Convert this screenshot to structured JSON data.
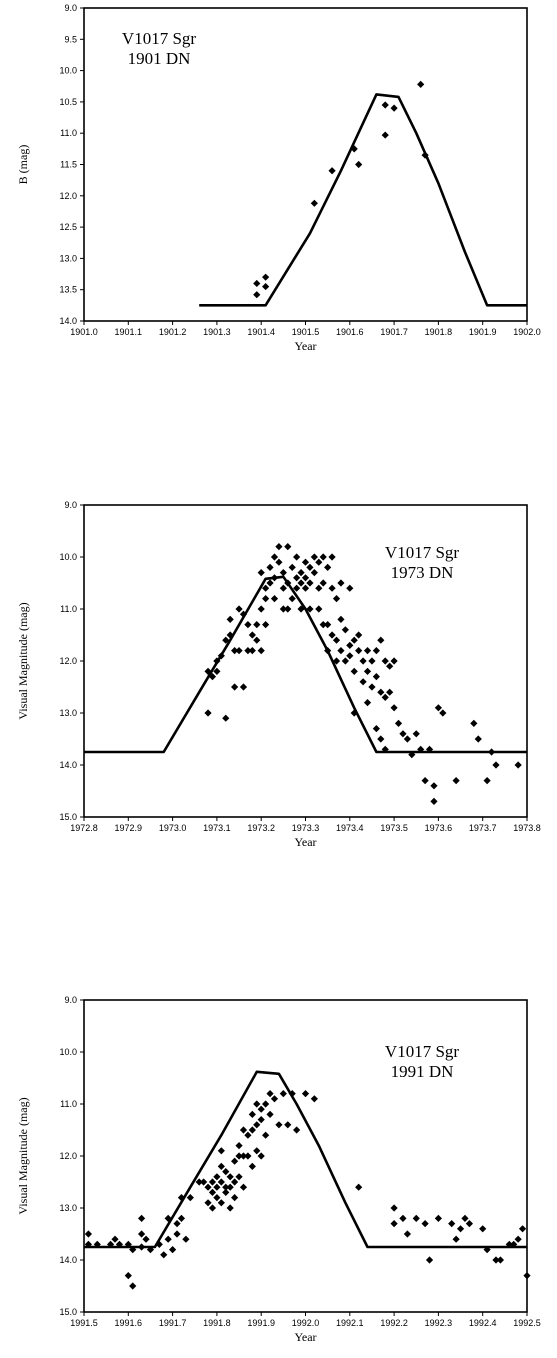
{
  "chart_data": [
    {
      "type": "scatter",
      "annotation": [
        "V1017 Sgr",
        "1901 DN"
      ],
      "xlabel": "Year",
      "ylabel": "B (mag)",
      "xlim": [
        1901.0,
        1902.0
      ],
      "ylim": [
        9.0,
        14.0
      ],
      "y_inverted": true,
      "xticks": [
        "1901.0",
        "1901.1",
        "1901.2",
        "1901.3",
        "1901.4",
        "1901.5",
        "1901.6",
        "1901.7",
        "1901.8",
        "1901.9",
        "1902.0"
      ],
      "yticks": [
        "9.0",
        "9.5",
        "10.0",
        "10.5",
        "11.0",
        "11.5",
        "12.0",
        "12.5",
        "13.0",
        "13.5",
        "14.0"
      ],
      "model": [
        [
          1901.26,
          13.75
        ],
        [
          1901.41,
          13.75
        ],
        [
          1901.51,
          12.6
        ],
        [
          1901.58,
          11.6
        ],
        [
          1901.66,
          10.38
        ],
        [
          1901.71,
          10.42
        ],
        [
          1901.75,
          11.0
        ],
        [
          1901.8,
          11.8
        ],
        [
          1901.86,
          12.9
        ],
        [
          1901.91,
          13.75
        ],
        [
          1902.0,
          13.75
        ]
      ],
      "points": [
        [
          1901.39,
          13.4
        ],
        [
          1901.39,
          13.58
        ],
        [
          1901.41,
          13.3
        ],
        [
          1901.41,
          13.45
        ],
        [
          1901.52,
          12.12
        ],
        [
          1901.56,
          11.6
        ],
        [
          1901.61,
          11.25
        ],
        [
          1901.62,
          11.5
        ],
        [
          1901.68,
          11.03
        ],
        [
          1901.68,
          10.55
        ],
        [
          1901.7,
          10.6
        ],
        [
          1901.76,
          10.22
        ],
        [
          1901.77,
          11.35
        ]
      ]
    },
    {
      "type": "scatter",
      "annotation": [
        "V1017 Sgr",
        "1973 DN"
      ],
      "xlabel": "Year",
      "ylabel": "Visual Magnitude (mag)",
      "xlim": [
        1972.8,
        1973.8
      ],
      "ylim": [
        9.0,
        15.0
      ],
      "y_inverted": true,
      "xticks": [
        "1972.8",
        "1972.9",
        "1973.0",
        "1973.1",
        "1973.2",
        "1973.3",
        "1973.4",
        "1973.5",
        "1973.6",
        "1973.7",
        "1973.8"
      ],
      "yticks": [
        "9.0",
        "10.0",
        "11.0",
        "12.0",
        "13.0",
        "14.0",
        "15.0"
      ],
      "model": [
        [
          1972.8,
          13.75
        ],
        [
          1972.98,
          13.75
        ],
        [
          1973.06,
          12.6
        ],
        [
          1973.13,
          11.6
        ],
        [
          1973.21,
          10.42
        ],
        [
          1973.25,
          10.38
        ],
        [
          1973.3,
          11.0
        ],
        [
          1973.35,
          11.8
        ],
        [
          1973.41,
          12.9
        ],
        [
          1973.46,
          13.75
        ],
        [
          1973.8,
          13.75
        ]
      ],
      "points": [
        [
          1973.08,
          13.0
        ],
        [
          1973.12,
          13.1
        ],
        [
          1973.08,
          12.2
        ],
        [
          1973.09,
          12.3
        ],
        [
          1973.1,
          12.0
        ],
        [
          1973.1,
          12.2
        ],
        [
          1973.11,
          11.9
        ],
        [
          1973.12,
          11.6
        ],
        [
          1973.13,
          11.5
        ],
        [
          1973.13,
          11.2
        ],
        [
          1973.14,
          11.8
        ],
        [
          1973.14,
          12.5
        ],
        [
          1973.15,
          11.0
        ],
        [
          1973.15,
          11.8
        ],
        [
          1973.16,
          11.1
        ],
        [
          1973.16,
          12.5
        ],
        [
          1973.17,
          11.3
        ],
        [
          1973.17,
          11.8
        ],
        [
          1973.18,
          11.5
        ],
        [
          1973.18,
          11.8
        ],
        [
          1973.19,
          11.3
        ],
        [
          1973.19,
          11.6
        ],
        [
          1973.2,
          10.3
        ],
        [
          1973.2,
          11.0
        ],
        [
          1973.2,
          11.8
        ],
        [
          1973.21,
          10.6
        ],
        [
          1973.21,
          10.8
        ],
        [
          1973.21,
          11.3
        ],
        [
          1973.22,
          10.2
        ],
        [
          1973.22,
          10.5
        ],
        [
          1973.23,
          10.0
        ],
        [
          1973.23,
          10.4
        ],
        [
          1973.23,
          10.8
        ],
        [
          1973.24,
          9.8
        ],
        [
          1973.24,
          10.1
        ],
        [
          1973.25,
          10.3
        ],
        [
          1973.25,
          10.6
        ],
        [
          1973.25,
          11.0
        ],
        [
          1973.26,
          9.8
        ],
        [
          1973.26,
          10.5
        ],
        [
          1973.26,
          11.0
        ],
        [
          1973.27,
          10.2
        ],
        [
          1973.27,
          10.8
        ],
        [
          1973.28,
          10.0
        ],
        [
          1973.28,
          10.4
        ],
        [
          1973.28,
          10.6
        ],
        [
          1973.29,
          10.3
        ],
        [
          1973.29,
          10.5
        ],
        [
          1973.29,
          11.0
        ],
        [
          1973.3,
          10.1
        ],
        [
          1973.3,
          10.4
        ],
        [
          1973.3,
          10.6
        ],
        [
          1973.31,
          10.2
        ],
        [
          1973.31,
          10.5
        ],
        [
          1973.31,
          11.0
        ],
        [
          1973.32,
          10.0
        ],
        [
          1973.32,
          10.3
        ],
        [
          1973.33,
          10.1
        ],
        [
          1973.33,
          10.6
        ],
        [
          1973.33,
          11.0
        ],
        [
          1973.34,
          10.0
        ],
        [
          1973.34,
          10.5
        ],
        [
          1973.34,
          11.3
        ],
        [
          1973.35,
          10.2
        ],
        [
          1973.35,
          11.3
        ],
        [
          1973.35,
          11.8
        ],
        [
          1973.36,
          10.0
        ],
        [
          1973.36,
          10.6
        ],
        [
          1973.36,
          11.5
        ],
        [
          1973.37,
          10.8
        ],
        [
          1973.37,
          11.6
        ],
        [
          1973.37,
          12.0
        ],
        [
          1973.38,
          10.5
        ],
        [
          1973.38,
          11.2
        ],
        [
          1973.38,
          11.8
        ],
        [
          1973.39,
          11.4
        ],
        [
          1973.39,
          12.0
        ],
        [
          1973.4,
          10.6
        ],
        [
          1973.4,
          11.7
        ],
        [
          1973.4,
          11.9
        ],
        [
          1973.41,
          11.6
        ],
        [
          1973.41,
          12.2
        ],
        [
          1973.41,
          13.0
        ],
        [
          1973.42,
          11.5
        ],
        [
          1973.42,
          11.8
        ],
        [
          1973.43,
          12.0
        ],
        [
          1973.43,
          12.4
        ],
        [
          1973.44,
          11.8
        ],
        [
          1973.44,
          12.2
        ],
        [
          1973.44,
          12.8
        ],
        [
          1973.45,
          12.0
        ],
        [
          1973.45,
          12.5
        ],
        [
          1973.46,
          11.8
        ],
        [
          1973.46,
          12.3
        ],
        [
          1973.46,
          13.3
        ],
        [
          1973.47,
          11.6
        ],
        [
          1973.47,
          12.6
        ],
        [
          1973.47,
          13.5
        ],
        [
          1973.48,
          12.0
        ],
        [
          1973.48,
          12.7
        ],
        [
          1973.48,
          13.7
        ],
        [
          1973.49,
          12.1
        ],
        [
          1973.49,
          12.6
        ],
        [
          1973.5,
          12.0
        ],
        [
          1973.5,
          12.9
        ],
        [
          1973.51,
          13.2
        ],
        [
          1973.52,
          13.4
        ],
        [
          1973.53,
          13.5
        ],
        [
          1973.54,
          13.8
        ],
        [
          1973.55,
          13.4
        ],
        [
          1973.56,
          13.7
        ],
        [
          1973.58,
          13.7
        ],
        [
          1973.57,
          14.3
        ],
        [
          1973.59,
          14.4
        ],
        [
          1973.59,
          14.7
        ],
        [
          1973.6,
          12.9
        ],
        [
          1973.61,
          13.0
        ],
        [
          1973.64,
          14.3
        ],
        [
          1973.68,
          13.2
        ],
        [
          1973.69,
          13.5
        ],
        [
          1973.71,
          14.3
        ],
        [
          1973.72,
          13.75
        ],
        [
          1973.73,
          14.0
        ],
        [
          1973.78,
          14.0
        ]
      ]
    },
    {
      "type": "scatter",
      "annotation": [
        "V1017 Sgr",
        "1991 DN"
      ],
      "xlabel": "Year",
      "ylabel": "Visual Magnitude (mag)",
      "xlim": [
        1991.5,
        1992.5
      ],
      "ylim": [
        9.0,
        15.0
      ],
      "y_inverted": true,
      "xticks": [
        "1991.5",
        "1991.6",
        "1991.7",
        "1991.8",
        "1991.9",
        "1992.0",
        "1992.1",
        "1992.2",
        "1992.3",
        "1992.4",
        "1992.5"
      ],
      "yticks": [
        "9.0",
        "10.0",
        "11.0",
        "12.0",
        "13.0",
        "14.0",
        "15.0"
      ],
      "model": [
        [
          1991.5,
          13.75
        ],
        [
          1991.66,
          13.75
        ],
        [
          1991.74,
          12.6
        ],
        [
          1991.81,
          11.6
        ],
        [
          1991.89,
          10.38
        ],
        [
          1991.94,
          10.42
        ],
        [
          1991.98,
          11.0
        ],
        [
          1992.03,
          11.8
        ],
        [
          1992.09,
          12.9
        ],
        [
          1992.14,
          13.75
        ],
        [
          1992.5,
          13.75
        ]
      ],
      "points": [
        [
          1991.51,
          13.5
        ],
        [
          1991.51,
          13.7
        ],
        [
          1991.53,
          13.7
        ],
        [
          1991.56,
          13.7
        ],
        [
          1991.57,
          13.6
        ],
        [
          1991.58,
          13.7
        ],
        [
          1991.6,
          13.7
        ],
        [
          1991.6,
          14.3
        ],
        [
          1991.61,
          14.5
        ],
        [
          1991.61,
          13.8
        ],
        [
          1991.63,
          13.2
        ],
        [
          1991.63,
          13.5
        ],
        [
          1991.63,
          13.75
        ],
        [
          1991.64,
          13.6
        ],
        [
          1991.65,
          13.8
        ],
        [
          1991.67,
          13.7
        ],
        [
          1991.68,
          13.9
        ],
        [
          1991.69,
          13.2
        ],
        [
          1991.69,
          13.6
        ],
        [
          1991.7,
          13.8
        ],
        [
          1991.71,
          13.3
        ],
        [
          1991.71,
          13.5
        ],
        [
          1991.72,
          12.8
        ],
        [
          1991.72,
          13.2
        ],
        [
          1991.73,
          13.6
        ],
        [
          1991.74,
          12.8
        ],
        [
          1991.76,
          12.5
        ],
        [
          1991.77,
          12.5
        ],
        [
          1991.78,
          12.6
        ],
        [
          1991.78,
          12.9
        ],
        [
          1991.79,
          12.5
        ],
        [
          1991.79,
          12.7
        ],
        [
          1991.79,
          13.0
        ],
        [
          1991.8,
          12.4
        ],
        [
          1991.8,
          12.6
        ],
        [
          1991.8,
          12.8
        ],
        [
          1991.81,
          11.9
        ],
        [
          1991.81,
          12.2
        ],
        [
          1991.81,
          12.5
        ],
        [
          1991.81,
          12.9
        ],
        [
          1991.82,
          12.3
        ],
        [
          1991.82,
          12.6
        ],
        [
          1991.82,
          12.7
        ],
        [
          1991.83,
          12.4
        ],
        [
          1991.83,
          12.6
        ],
        [
          1991.83,
          13.0
        ],
        [
          1991.84,
          12.1
        ],
        [
          1991.84,
          12.5
        ],
        [
          1991.84,
          12.8
        ],
        [
          1991.85,
          11.8
        ],
        [
          1991.85,
          12.0
        ],
        [
          1991.85,
          12.4
        ],
        [
          1991.86,
          11.5
        ],
        [
          1991.86,
          12.0
        ],
        [
          1991.86,
          12.6
        ],
        [
          1991.87,
          11.6
        ],
        [
          1991.87,
          12.0
        ],
        [
          1991.88,
          11.2
        ],
        [
          1991.88,
          11.5
        ],
        [
          1991.88,
          12.2
        ],
        [
          1991.89,
          11.0
        ],
        [
          1991.89,
          11.4
        ],
        [
          1991.89,
          11.9
        ],
        [
          1991.9,
          11.1
        ],
        [
          1991.9,
          11.3
        ],
        [
          1991.9,
          12.0
        ],
        [
          1991.91,
          11.0
        ],
        [
          1991.91,
          11.6
        ],
        [
          1991.92,
          10.8
        ],
        [
          1991.92,
          11.2
        ],
        [
          1991.93,
          10.9
        ],
        [
          1991.94,
          11.4
        ],
        [
          1991.95,
          10.8
        ],
        [
          1991.96,
          11.4
        ],
        [
          1991.97,
          10.8
        ],
        [
          1991.98,
          11.5
        ],
        [
          1992.0,
          10.8
        ],
        [
          1992.02,
          10.9
        ],
        [
          1992.12,
          12.6
        ],
        [
          1992.2,
          13.0
        ],
        [
          1992.2,
          13.3
        ],
        [
          1992.22,
          13.2
        ],
        [
          1992.23,
          13.5
        ],
        [
          1992.25,
          13.2
        ],
        [
          1992.27,
          13.3
        ],
        [
          1992.28,
          14.0
        ],
        [
          1992.3,
          13.2
        ],
        [
          1992.33,
          13.3
        ],
        [
          1992.34,
          13.6
        ],
        [
          1992.35,
          13.4
        ],
        [
          1992.36,
          13.2
        ],
        [
          1992.37,
          13.3
        ],
        [
          1992.4,
          13.4
        ],
        [
          1992.41,
          13.8
        ],
        [
          1992.43,
          14.0
        ],
        [
          1992.44,
          14.0
        ],
        [
          1992.46,
          13.7
        ],
        [
          1992.47,
          13.7
        ],
        [
          1992.48,
          13.6
        ],
        [
          1992.49,
          13.4
        ],
        [
          1992.5,
          14.3
        ]
      ]
    }
  ]
}
